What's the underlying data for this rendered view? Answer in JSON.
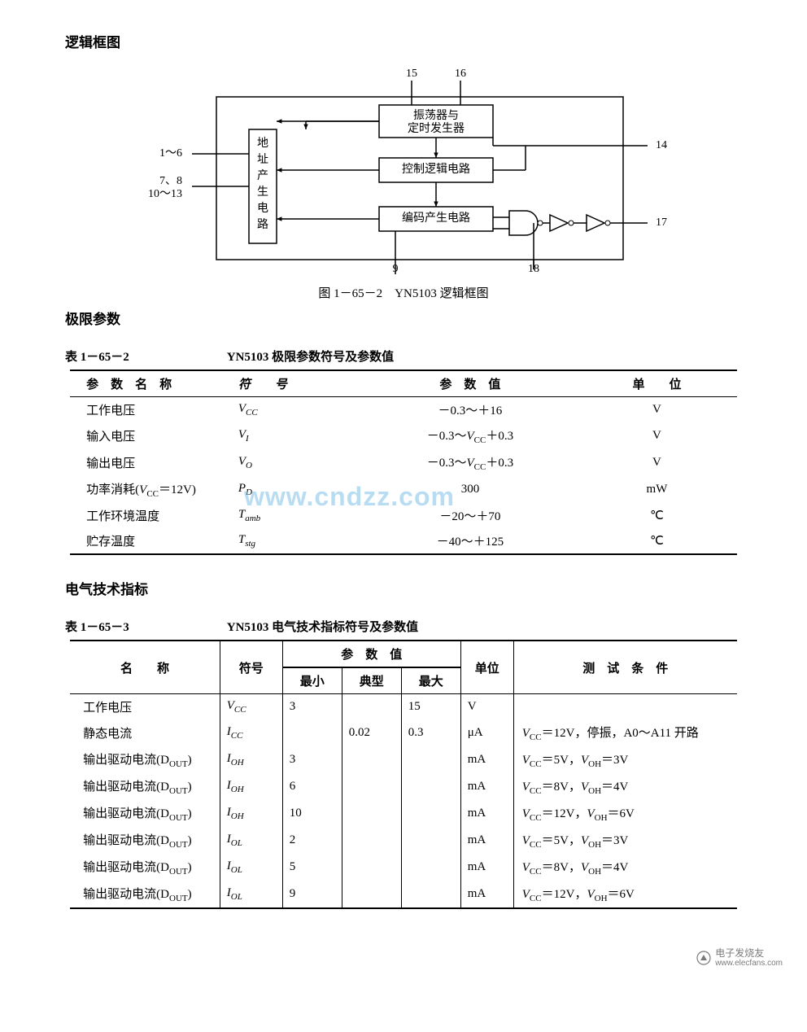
{
  "sections": {
    "logic_title": "逻辑框图",
    "limits_title": "极限参数",
    "elec_title": "电气技术指标"
  },
  "diagram": {
    "caption": "图 1－65－2　YN5103 逻辑框图",
    "pins": {
      "top_left": "15",
      "top_right": "16",
      "right_upper": "14",
      "right_lower": "17",
      "left_upper": "1～6",
      "left_mid1": "7、8",
      "left_mid2": "10～13",
      "bottom_left": "9",
      "bottom_right": "18"
    },
    "blocks": {
      "addr": "地址产生电路",
      "osc": "振荡器与\n定时发生器",
      "ctrl": "控制逻辑电路",
      "enc": "编码产生电路"
    },
    "stroke": "#000000",
    "fill": "#ffffff",
    "font_size": 14
  },
  "watermark": "www.cndzz.com",
  "table1": {
    "number": "表 1－65－2",
    "title": "YN5103 极限参数符号及参数值",
    "headers": {
      "name": "参　数　名　称",
      "symbol": "符　　号",
      "value": "参　数　值",
      "unit": "单　　位"
    },
    "rows": [
      {
        "name": "工作电压",
        "sym": "V",
        "sub": "CC",
        "value": "－0.3～＋16",
        "unit": "V"
      },
      {
        "name": "输入电压",
        "sym": "V",
        "sub": "I",
        "value": "－0.3～V_CC＋0.3",
        "unit": "V",
        "value_html": "－0.3～<span class='ital'>V</span><span class='sub'>CC</span>＋0.3"
      },
      {
        "name": "输出电压",
        "sym": "V",
        "sub": "O",
        "value": "－0.3～V_CC＋0.3",
        "unit": "V",
        "value_html": "－0.3～<span class='ital'>V</span><span class='sub'>CC</span>＋0.3"
      },
      {
        "name": "功率消耗(V_CC＝12V)",
        "name_html": "功率消耗(<span class='ital'>V</span><span class='sub'>CC</span>＝12V)",
        "sym": "P",
        "sub": "D",
        "value": "300",
        "unit": "mW"
      },
      {
        "name": "工作环境温度",
        "sym": "T",
        "sub": "amb",
        "value": "－20～＋70",
        "unit": "℃"
      },
      {
        "name": "贮存温度",
        "sym": "T",
        "sub": "stg",
        "value": "－40～＋125",
        "unit": "℃"
      }
    ]
  },
  "table2": {
    "number": "表 1－65－3",
    "title": "YN5103 电气技术指标符号及参数值",
    "headers": {
      "name": "名　　称",
      "symbol": "符号",
      "value_group": "参　数　值",
      "min": "最小",
      "typ": "典型",
      "max": "最大",
      "unit": "单位",
      "cond": "测　试　条　件"
    },
    "rows": [
      {
        "name": "工作电压",
        "sym": "V",
        "sub": "CC",
        "min": "3",
        "typ": "",
        "max": "15",
        "unit": "V",
        "cond": ""
      },
      {
        "name": "静态电流",
        "sym": "I",
        "sub": "CC",
        "min": "",
        "typ": "0.02",
        "max": "0.3",
        "unit": "μA",
        "cond_html": "<span class='ital'>V</span><span class='sub'>CC</span>＝12V，停振，A0～A11 开路"
      },
      {
        "name_html": "输出驱动电流(D<span class='sub'>OUT</span>)",
        "sym": "I",
        "sub": "OH",
        "min": "3",
        "typ": "",
        "max": "",
        "unit": "mA",
        "cond_html": "<span class='ital'>V</span><span class='sub'>CC</span>＝5V，<span class='ital'>V</span><span class='sub'>OH</span>＝3V"
      },
      {
        "name_html": "输出驱动电流(D<span class='sub'>OUT</span>)",
        "sym": "I",
        "sub": "OH",
        "min": "6",
        "typ": "",
        "max": "",
        "unit": "mA",
        "cond_html": "<span class='ital'>V</span><span class='sub'>CC</span>＝8V，<span class='ital'>V</span><span class='sub'>OH</span>＝4V"
      },
      {
        "name_html": "输出驱动电流(D<span class='sub'>OUT</span>)",
        "sym": "I",
        "sub": "OH",
        "min": "10",
        "typ": "",
        "max": "",
        "unit": "mA",
        "cond_html": "<span class='ital'>V</span><span class='sub'>CC</span>＝12V，<span class='ital'>V</span><span class='sub'>OH</span>＝6V"
      },
      {
        "name_html": "输出驱动电流(D<span class='sub'>OUT</span>)",
        "sym": "I",
        "sub": "OL",
        "min": "2",
        "typ": "",
        "max": "",
        "unit": "mA",
        "cond_html": "<span class='ital'>V</span><span class='sub'>CC</span>＝5V，<span class='ital'>V</span><span class='sub'>OH</span>＝3V"
      },
      {
        "name_html": "输出驱动电流(D<span class='sub'>OUT</span>)",
        "sym": "I",
        "sub": "OL",
        "min": "5",
        "typ": "",
        "max": "",
        "unit": "mA",
        "cond_html": "<span class='ital'>V</span><span class='sub'>CC</span>＝8V，<span class='ital'>V</span><span class='sub'>OH</span>＝4V"
      },
      {
        "name_html": "输出驱动电流(D<span class='sub'>OUT</span>)",
        "sym": "I",
        "sub": "OL",
        "min": "9",
        "typ": "",
        "max": "",
        "unit": "mA",
        "cond_html": "<span class='ital'>V</span><span class='sub'>CC</span>＝12V，<span class='ital'>V</span><span class='sub'>OH</span>＝6V"
      }
    ]
  },
  "footer": {
    "text1": "电子发烧友",
    "text2": "www.elecfans.com",
    "color": "#7a7a7a"
  }
}
